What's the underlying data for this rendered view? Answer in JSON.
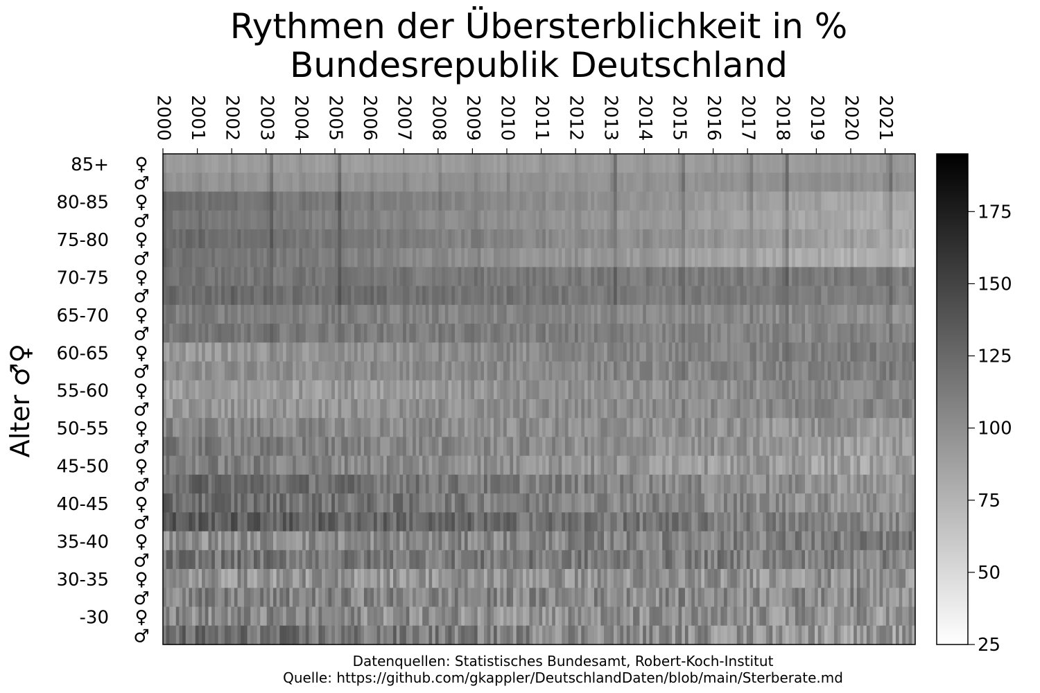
{
  "chart_data": {
    "type": "heatmap",
    "title_lines": [
      "Rythmen der Übersterblichkeit in %",
      "Bundesrepublik Deutschland"
    ],
    "ylabel": "Alter   ♂♀",
    "x_tick_labels": [
      "2000",
      "2001",
      "2002",
      "2003",
      "2004",
      "2005",
      "2006",
      "2007",
      "2008",
      "2009",
      "2010",
      "2011",
      "2012",
      "2013",
      "2014",
      "2015",
      "2016",
      "2017",
      "2018",
      "2019",
      "2020",
      "2021"
    ],
    "age_groups": [
      "85+",
      "80-85",
      "75-80",
      "70-75",
      "65-70",
      "60-65",
      "55-60",
      "50-55",
      "45-50",
      "40-45",
      "35-40",
      "30-35",
      "-30"
    ],
    "sex_symbols": [
      "♀",
      "♂"
    ],
    "row_base_values": [
      [
        90,
        96
      ],
      [
        122,
        118
      ],
      [
        124,
        120
      ],
      [
        116,
        124
      ],
      [
        112,
        116
      ],
      [
        92,
        98
      ],
      [
        90,
        94
      ],
      [
        106,
        114
      ],
      [
        112,
        128
      ],
      [
        124,
        136
      ],
      [
        100,
        118
      ],
      [
        96,
        108
      ],
      [
        104,
        122
      ]
    ],
    "row_end_values": [
      [
        92,
        98
      ],
      [
        80,
        78
      ],
      [
        84,
        74
      ],
      [
        112,
        108
      ],
      [
        100,
        104
      ],
      [
        112,
        108
      ],
      [
        104,
        106
      ],
      [
        94,
        90
      ],
      [
        86,
        94
      ],
      [
        98,
        104
      ],
      [
        112,
        108
      ],
      [
        98,
        102
      ],
      [
        96,
        92
      ]
    ],
    "peak_years": [
      2003,
      2005,
      2009,
      2013,
      2015,
      2017,
      2018,
      2021
    ],
    "colorbar": {
      "min": 25,
      "max": 195,
      "ticks": [
        25,
        50,
        75,
        100,
        125,
        150,
        175
      ],
      "colormap": "gray_r"
    },
    "source_lines": [
      "Datenquellen: Statistisches Bundesamt, Robert-Koch-Institut",
      "Quelle: https://github.com/gkappler/DeutschlandDaten/blob/main/Sterberate.md"
    ]
  },
  "colors": {
    "text": "#000000",
    "background": "#ffffff"
  }
}
